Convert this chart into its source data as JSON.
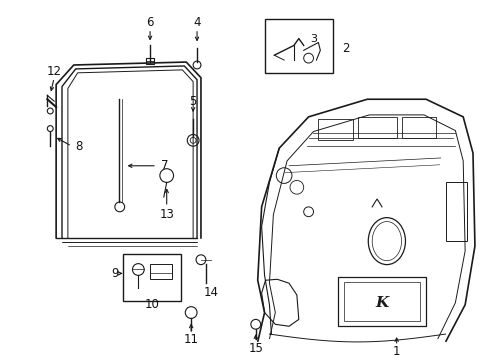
{
  "bg_color": "#ffffff",
  "line_color": "#1a1a1a",
  "fig_width": 4.89,
  "fig_height": 3.6,
  "dpi": 100,
  "label_fontsize": 8.5
}
